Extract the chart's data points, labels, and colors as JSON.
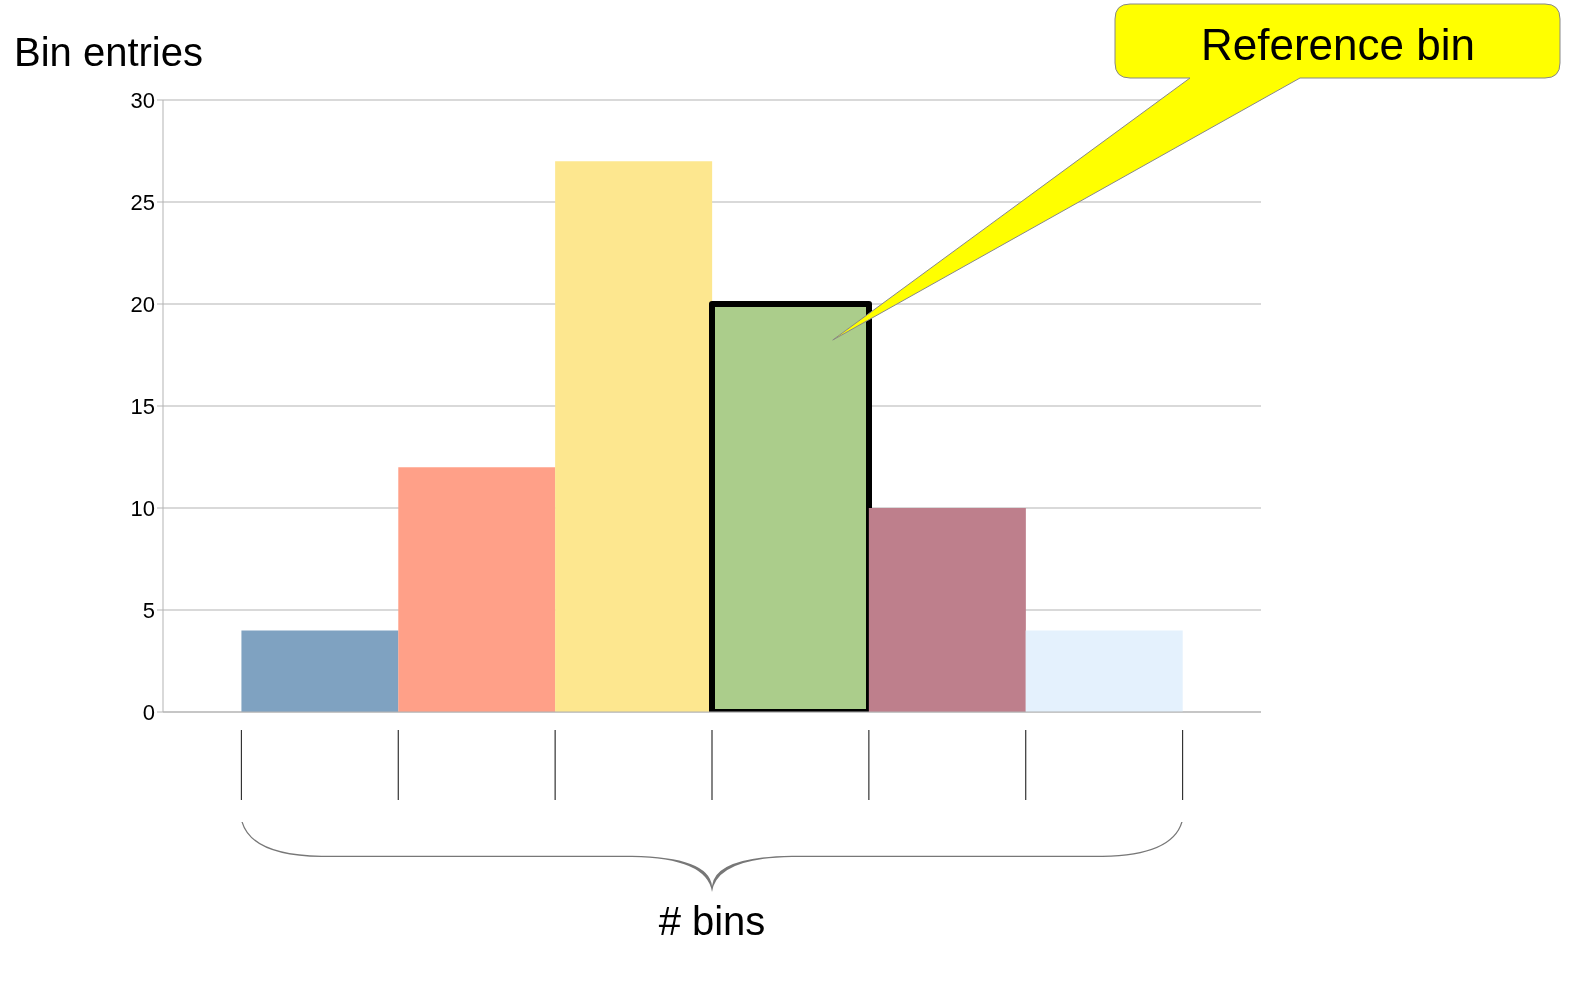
{
  "chart_data": {
    "type": "bar",
    "xlabel": "# bins",
    "ylabel": "Bin entries",
    "categories": [
      null,
      null,
      null,
      null,
      null,
      null
    ],
    "values": [
      4,
      12,
      27,
      20,
      10,
      4
    ],
    "colors": [
      "#7fa2c1",
      "#ffa088",
      "#fde78f",
      "#abcd8b",
      "#be7f8c",
      "#e4f1fd"
    ],
    "ylim": [
      0,
      30
    ],
    "yticks": [
      0,
      5,
      10,
      15,
      20,
      25,
      30
    ],
    "grid": "y",
    "tick_labels": "y",
    "annotations": [
      "Reference bin"
    ]
  }
}
